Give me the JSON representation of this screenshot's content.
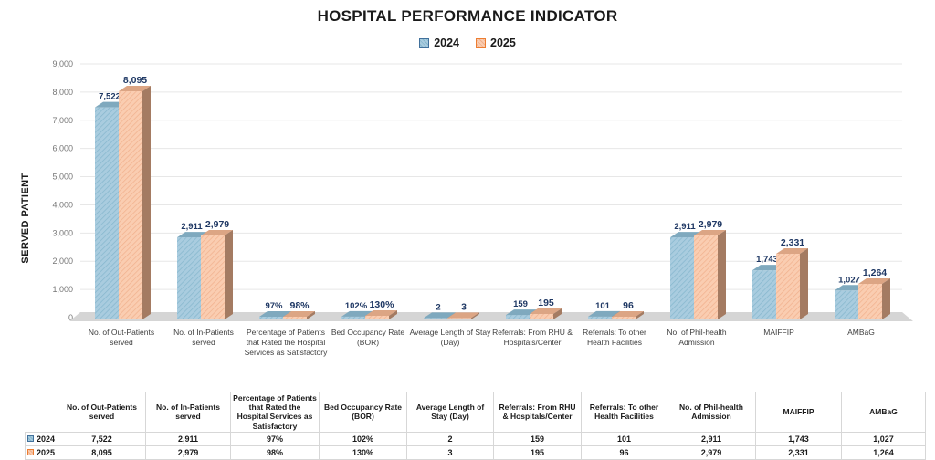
{
  "chart_data": {
    "type": "bar",
    "title": "HOSPITAL PERFORMANCE INDICATOR",
    "ylabel": "SERVED PATIENT",
    "ylim": [
      0,
      9000
    ],
    "ytick_step": 1000,
    "ytick_labels": [
      "0",
      "1,000",
      "2,000",
      "3,000",
      "4,000",
      "5,000",
      "6,000",
      "7,000",
      "8,000",
      "9,000"
    ],
    "grid": true,
    "legend_position": "top",
    "categories": [
      "No. of Out-Patients served",
      "No. of In-Patients served",
      "Percentage of Patients that Rated the Hospital Services as Satisfactory",
      "Bed Occupancy Rate (BOR)",
      "Average Length of Stay (Day)",
      "Referrals: From RHU & Hospitals/Center",
      "Referrals: To other Health Facilities",
      "No. of Phil-health Admission",
      "MAIFFIP",
      "AMBaG"
    ],
    "series": [
      {
        "name": "2024",
        "values": [
          7522,
          2911,
          97,
          102,
          2,
          159,
          101,
          2911,
          1743,
          1027
        ],
        "labels": [
          "7,522",
          "2,911",
          "97%",
          "102%",
          "2",
          "159",
          "101",
          "2,911",
          "1,743",
          "1,027"
        ],
        "colors": {
          "front": "#A9CCDF",
          "hatch": "#85B6CD",
          "side": "#3C6E8C",
          "top": "#7FA9BE",
          "border": "#41719C"
        }
      },
      {
        "name": "2025",
        "values": [
          8095,
          2979,
          98,
          130,
          3,
          195,
          96,
          2979,
          2331,
          1264
        ],
        "labels": [
          "8,095",
          "2,979",
          "98%",
          "130%",
          "3",
          "195",
          "96",
          "2,979",
          "2,331",
          "1,264"
        ],
        "colors": {
          "front": "#FACDB1",
          "hatch": "#F0B08C",
          "side": "#A47B62",
          "top": "#DCA584",
          "border": "#ED7D31"
        }
      }
    ],
    "value_label_color": "#1F3864",
    "gridline_color": "#E7E7E7",
    "floor_color": "#D5D5D5",
    "tick_color": "#767676"
  },
  "table": {
    "headers": [
      "No. of Out-Patients served",
      "No. of In-Patients served",
      "Percentage of Patients that Rated the Hospital Services as Satisfactory",
      "Bed Occupancy Rate (BOR)",
      "Average Length of Stay (Day)",
      "Referrals: From RHU & Hospitals/Center",
      "Referrals: To other Health Facilities",
      "No. of Phil-health Admission",
      "MAIFFIP",
      "AMBaG"
    ],
    "rows": [
      {
        "label": "2024",
        "cells": [
          "7,522",
          "2,911",
          "97%",
          "102%",
          "2",
          "159",
          "101",
          "2,911",
          "1,743",
          "1,027"
        ]
      },
      {
        "label": "2025",
        "cells": [
          "8,095",
          "2,979",
          "98%",
          "130%",
          "3",
          "195",
          "96",
          "2,979",
          "2,331",
          "1,264"
        ]
      }
    ]
  }
}
